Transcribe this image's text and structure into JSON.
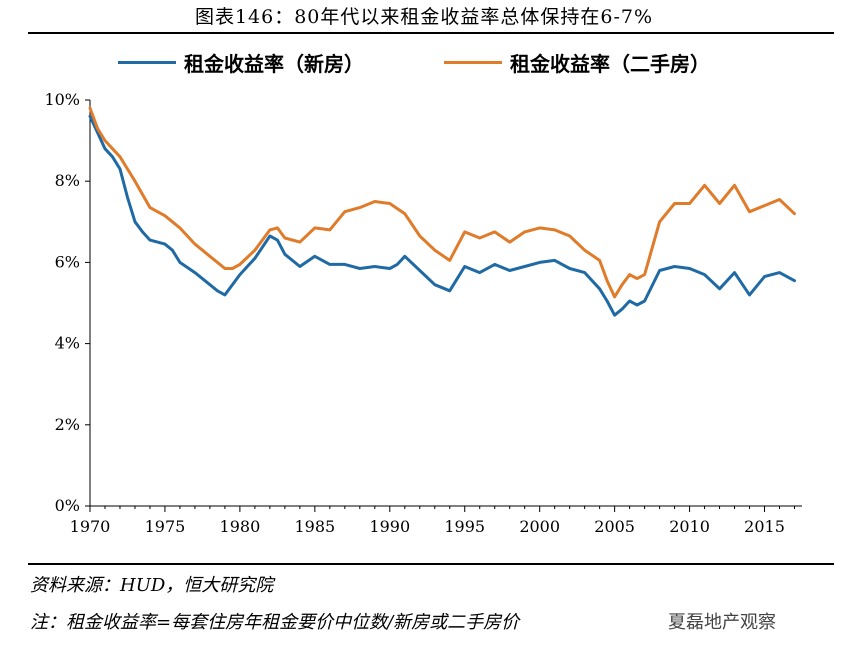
{
  "title": "图表146：80年代以来租金收益率总体保持在6-7%",
  "source": "资料来源：HUD，恒大研究院",
  "note": "注：租金收益率=每套住房年租金要价中位数/新房或二手房价",
  "watermark": "夏磊地产观察",
  "colors": {
    "new": "#1f6aa5",
    "used": "#e07b2a"
  },
  "chart_data": {
    "type": "line",
    "title": "图表146：80年代以来租金收益率总体保持在6-7%",
    "xlabel": "",
    "ylabel": "",
    "xlim": [
      1970,
      2017.5
    ],
    "ylim": [
      0,
      10
    ],
    "xticks": [
      1970,
      1975,
      1980,
      1985,
      1990,
      1995,
      2000,
      2005,
      2010,
      2015
    ],
    "yticks": [
      0,
      2,
      4,
      6,
      8,
      10
    ],
    "ytick_labels": [
      "0%",
      "2%",
      "4%",
      "6%",
      "8%",
      "10%"
    ],
    "legend_position": "top",
    "series": [
      {
        "name": "租金收益率（新房）",
        "color": "#1f6aa5",
        "x": [
          1970,
          1970.5,
          1971,
          1971.5,
          1972,
          1972.5,
          1973,
          1973.5,
          1974,
          1974.5,
          1975,
          1975.5,
          1976,
          1977,
          1978,
          1978.5,
          1979,
          1980,
          1981,
          1982,
          1982.5,
          1983,
          1984,
          1985,
          1986,
          1987,
          1988,
          1989,
          1990,
          1990.5,
          1991,
          1992,
          1993,
          1994,
          1995,
          1996,
          1997,
          1998,
          1999,
          2000,
          2001,
          2002,
          2003,
          2004,
          2004.5,
          2005,
          2005.5,
          2006,
          2006.5,
          2007,
          2008,
          2009,
          2010,
          2011,
          2012,
          2013,
          2014,
          2015,
          2016,
          2017
        ],
        "values": [
          9.6,
          9.2,
          8.8,
          8.6,
          8.3,
          7.6,
          7.0,
          6.75,
          6.55,
          6.5,
          6.45,
          6.3,
          6.0,
          5.75,
          5.45,
          5.3,
          5.2,
          5.7,
          6.1,
          6.65,
          6.55,
          6.2,
          5.9,
          6.15,
          5.95,
          5.95,
          5.85,
          5.9,
          5.85,
          5.95,
          6.15,
          5.8,
          5.45,
          5.3,
          5.9,
          5.75,
          5.95,
          5.8,
          5.9,
          6.0,
          6.05,
          5.85,
          5.75,
          5.35,
          5.05,
          4.7,
          4.85,
          5.05,
          4.95,
          5.05,
          5.8,
          5.9,
          5.85,
          5.7,
          5.35,
          5.75,
          5.2,
          5.65,
          5.75,
          5.55
        ]
      },
      {
        "name": "租金收益率（二手房）",
        "color": "#e07b2a",
        "x": [
          1970,
          1970.5,
          1971,
          1971.5,
          1972,
          1972.5,
          1973,
          1974,
          1974.5,
          1975,
          1976,
          1977,
          1978,
          1979,
          1979.5,
          1980,
          1981,
          1982,
          1982.5,
          1983,
          1984,
          1985,
          1986,
          1987,
          1988,
          1989,
          1990,
          1991,
          1992,
          1993,
          1994,
          1995,
          1996,
          1997,
          1998,
          1999,
          2000,
          2001,
          2002,
          2003,
          2004,
          2004.5,
          2005,
          2005.5,
          2006,
          2006.5,
          2007,
          2008,
          2009,
          2010,
          2011,
          2012,
          2013,
          2014,
          2015,
          2016,
          2017
        ],
        "values": [
          9.8,
          9.3,
          9.0,
          8.8,
          8.6,
          8.3,
          8.0,
          7.35,
          7.25,
          7.15,
          6.85,
          6.45,
          6.15,
          5.85,
          5.85,
          5.95,
          6.3,
          6.8,
          6.85,
          6.6,
          6.5,
          6.85,
          6.8,
          7.25,
          7.35,
          7.5,
          7.45,
          7.2,
          6.65,
          6.3,
          6.05,
          6.75,
          6.6,
          6.75,
          6.5,
          6.75,
          6.85,
          6.8,
          6.65,
          6.3,
          6.05,
          5.55,
          5.15,
          5.45,
          5.7,
          5.6,
          5.7,
          7.0,
          7.45,
          7.45,
          7.9,
          7.45,
          7.9,
          7.25,
          7.4,
          7.55,
          7.2
        ]
      }
    ]
  }
}
